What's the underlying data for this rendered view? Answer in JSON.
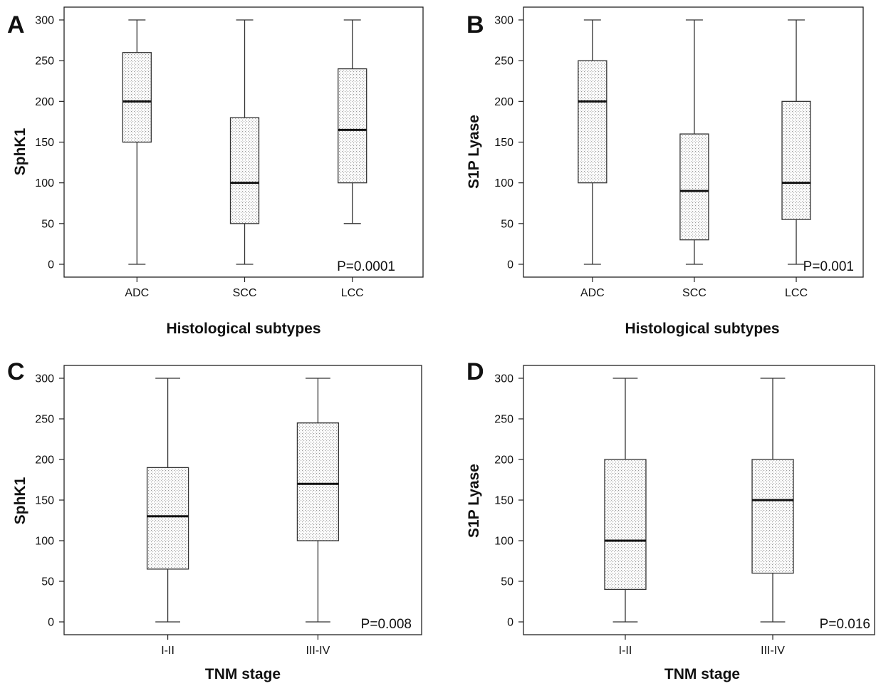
{
  "chart_data": [
    {
      "type": "box",
      "panel": "A",
      "xlabel": "Histological subtypes",
      "ylabel": "SphK1",
      "categories": [
        "ADC",
        "SCC",
        "LCC"
      ],
      "yticks": [
        "0",
        "50",
        "100",
        "150",
        "200",
        "250",
        "300"
      ],
      "ylim": [
        0,
        300
      ],
      "boxes": [
        {
          "min": 0,
          "q1": 150,
          "median": 200,
          "q3": 260,
          "max": 300
        },
        {
          "min": 0,
          "q1": 50,
          "median": 100,
          "q3": 180,
          "max": 300
        },
        {
          "min": 50,
          "q1": 100,
          "median": 165,
          "q3": 240,
          "max": 300
        }
      ],
      "annotation": "P=0.0001"
    },
    {
      "type": "box",
      "panel": "B",
      "xlabel": "Histological subtypes",
      "ylabel": "S1P Lyase",
      "categories": [
        "ADC",
        "SCC",
        "LCC"
      ],
      "yticks": [
        "0",
        "50",
        "100",
        "150",
        "200",
        "250",
        "300"
      ],
      "ylim": [
        0,
        300
      ],
      "boxes": [
        {
          "min": 0,
          "q1": 100,
          "median": 200,
          "q3": 250,
          "max": 300
        },
        {
          "min": 0,
          "q1": 30,
          "median": 90,
          "q3": 160,
          "max": 300
        },
        {
          "min": 0,
          "q1": 55,
          "median": 100,
          "q3": 200,
          "max": 300
        }
      ],
      "annotation": "P=0.001"
    },
    {
      "type": "box",
      "panel": "C",
      "xlabel": "TNM stage",
      "ylabel": "SphK1",
      "categories": [
        "I-II",
        "III-IV"
      ],
      "yticks": [
        "0",
        "50",
        "100",
        "150",
        "200",
        "250",
        "300"
      ],
      "ylim": [
        0,
        300
      ],
      "boxes": [
        {
          "min": 0,
          "q1": 65,
          "median": 130,
          "q3": 190,
          "max": 300
        },
        {
          "min": 0,
          "q1": 100,
          "median": 170,
          "q3": 245,
          "max": 300
        }
      ],
      "annotation": "P=0.008"
    },
    {
      "type": "box",
      "panel": "D",
      "xlabel": "TNM stage",
      "ylabel": "S1P Lyase",
      "categories": [
        "I-II",
        "III-IV"
      ],
      "yticks": [
        "0",
        "50",
        "100",
        "150",
        "200",
        "250",
        "300"
      ],
      "ylim": [
        0,
        300
      ],
      "boxes": [
        {
          "min": 0,
          "q1": 40,
          "median": 100,
          "q3": 200,
          "max": 300
        },
        {
          "min": 0,
          "q1": 60,
          "median": 150,
          "q3": 200,
          "max": 300
        }
      ],
      "annotation": "P=0.016"
    }
  ]
}
